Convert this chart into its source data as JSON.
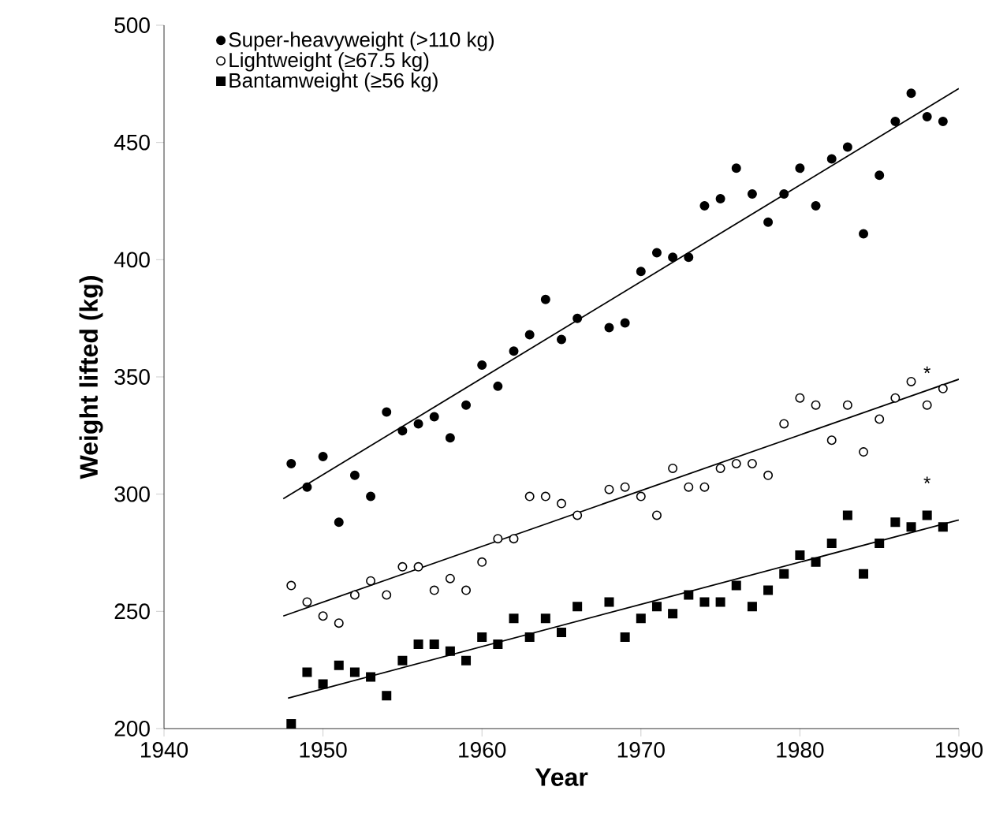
{
  "chart_data": {
    "type": "scatter",
    "xlabel": "Year",
    "ylabel": "Weight lifted (kg)",
    "xlim": [
      1940,
      1990
    ],
    "ylim": [
      200,
      500
    ],
    "xticks": [
      1940,
      1950,
      1960,
      1970,
      1980,
      1990
    ],
    "yticks": [
      200,
      250,
      300,
      350,
      400,
      450,
      500
    ],
    "legend": "top left",
    "grid": false,
    "series": [
      {
        "name": "Super-heavyweight (>110 kg)",
        "color": "#000000",
        "marker": "circle",
        "x": [
          1948,
          1949,
          1950,
          1951,
          1952,
          1953,
          1954,
          1955,
          1956,
          1957,
          1958,
          1959,
          1960,
          1961,
          1962,
          1963,
          1964,
          1965,
          1966,
          1968,
          1969,
          1970,
          1971,
          1972,
          1973,
          1974,
          1975,
          1976,
          1977,
          1978,
          1979,
          1980,
          1981,
          1982,
          1983,
          1984,
          1985,
          1986,
          1987,
          1988,
          1989
        ],
        "values": [
          313,
          303,
          316,
          288,
          308,
          299,
          335,
          327,
          330,
          333,
          324,
          338,
          355,
          346,
          361,
          368,
          383,
          366,
          375,
          371,
          373,
          395,
          403,
          401,
          401,
          423,
          426,
          439,
          428,
          416,
          428,
          439,
          423,
          443,
          448,
          411,
          436,
          459,
          471,
          461,
          459
        ]
      },
      {
        "name": "Lightweight (≥67.5 kg)",
        "color": "#ffffff",
        "marker": "circle",
        "x": [
          1948,
          1949,
          1950,
          1951,
          1952,
          1953,
          1954,
          1955,
          1956,
          1957,
          1958,
          1959,
          1960,
          1961,
          1962,
          1963,
          1964,
          1965,
          1966,
          1968,
          1969,
          1970,
          1971,
          1972,
          1973,
          1974,
          1975,
          1976,
          1977,
          1978,
          1979,
          1980,
          1981,
          1982,
          1983,
          1984,
          1985,
          1986,
          1987,
          1988,
          1989
        ],
        "values": [
          261,
          254,
          248,
          245,
          257,
          263,
          257,
          269,
          269,
          259,
          264,
          259,
          271,
          281,
          281,
          299,
          299,
          296,
          291,
          302,
          303,
          299,
          291,
          311,
          303,
          303,
          311,
          313,
          313,
          308,
          330,
          341,
          338,
          323,
          338,
          318,
          332,
          341,
          348,
          338,
          345
        ]
      },
      {
        "name": "Bantamweight (≥56 kg)",
        "color": "#000000",
        "marker": "square",
        "x": [
          1948,
          1949,
          1950,
          1951,
          1952,
          1953,
          1954,
          1955,
          1956,
          1957,
          1958,
          1959,
          1960,
          1961,
          1962,
          1963,
          1964,
          1965,
          1966,
          1968,
          1969,
          1970,
          1971,
          1972,
          1973,
          1974,
          1975,
          1976,
          1977,
          1978,
          1979,
          1980,
          1981,
          1982,
          1983,
          1984,
          1985,
          1986,
          1987,
          1988,
          1989
        ],
        "values": [
          202,
          224,
          219,
          227,
          224,
          222,
          214,
          229,
          236,
          236,
          233,
          229,
          239,
          236,
          247,
          239,
          247,
          241,
          252,
          254,
          239,
          247,
          252,
          249,
          257,
          254,
          254,
          261,
          252,
          259,
          266,
          274,
          271,
          279,
          291,
          266,
          279,
          288,
          286,
          291,
          286
        ]
      },
      {
        "type": "line",
        "color": "#000000",
        "marker": "none",
        "line_style": "solid",
        "x": [
          1947.5,
          1990
        ],
        "values": [
          298,
          473
        ]
      },
      {
        "type": "line",
        "color": "#000000",
        "marker": "none",
        "line_style": "solid",
        "x": [
          1947.5,
          1990
        ],
        "values": [
          248,
          349
        ]
      },
      {
        "type": "line",
        "color": "#000000",
        "marker": "none",
        "line_style": "solid",
        "x": [
          1947.8,
          1990
        ],
        "values": [
          213,
          289
        ]
      }
    ],
    "annotations": [
      {
        "text": "*",
        "x": 1988,
        "y": 338
      },
      {
        "text": "*",
        "x": 1988,
        "y": 291
      }
    ]
  }
}
